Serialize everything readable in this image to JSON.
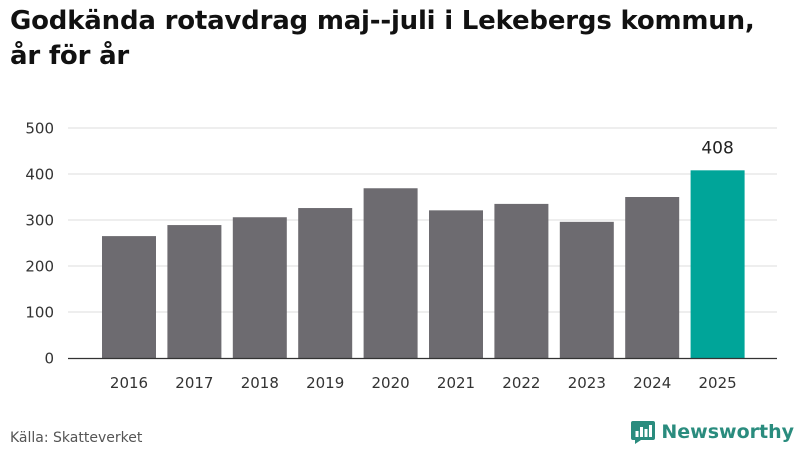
{
  "chart_data": {
    "type": "bar",
    "title": "Godkända rotavdrag maj--juli i Lekebergs kommun, år för år",
    "categories": [
      "2016",
      "2017",
      "2018",
      "2019",
      "2020",
      "2021",
      "2022",
      "2023",
      "2024",
      "2025"
    ],
    "values": [
      265,
      289,
      306,
      326,
      369,
      321,
      335,
      296,
      350,
      408
    ],
    "data_labels": [
      {
        "index": 9,
        "text": "408"
      }
    ],
    "highlight_index": 9,
    "xlabel": "",
    "ylabel": "",
    "ylim": [
      0,
      500
    ],
    "yticks": [
      0,
      100,
      200,
      300,
      400,
      500
    ],
    "grid": true,
    "colors": {
      "bar": "#6d6b70",
      "highlight": "#00a599",
      "grid": "#dcdcdc",
      "axis": "#333333"
    }
  },
  "footer": {
    "source": "Källa: Skatteverket",
    "brand": "Newsworthy",
    "brand_icon": "newsworthy-logo-icon",
    "brand_color": "#2a8c7e"
  }
}
